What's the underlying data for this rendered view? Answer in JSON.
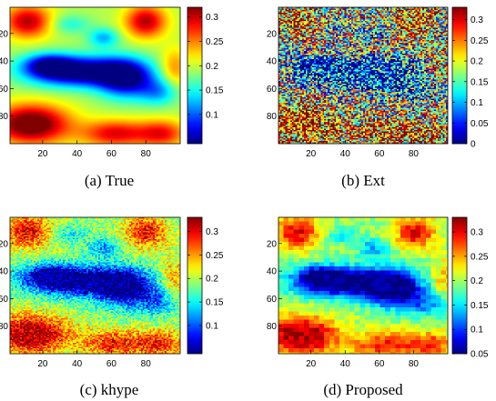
{
  "chart_data": [
    {
      "type": "heatmap",
      "caption": "(a) True",
      "variant": "true",
      "x_ticks": [
        "20",
        "40",
        "60",
        "80"
      ],
      "y_ticks": [
        "20",
        "40",
        "60",
        "80"
      ],
      "xlim": [
        1,
        100
      ],
      "ylim": [
        1,
        100
      ],
      "colorbar_range": [
        0.04,
        0.32
      ],
      "colorbar_ticks": [
        "0.3",
        "0.25",
        "0.2",
        "0.15",
        "0.1"
      ],
      "colormap": "jet"
    },
    {
      "type": "heatmap",
      "caption": "(b) Ext",
      "variant": "ext",
      "x_ticks": [
        "20",
        "40",
        "60",
        "80"
      ],
      "y_ticks": [
        "20",
        "40",
        "60",
        "80"
      ],
      "xlim": [
        1,
        100
      ],
      "ylim": [
        1,
        100
      ],
      "colorbar_range": [
        0,
        0.33
      ],
      "colorbar_ticks": [
        "0.3",
        "0.25",
        "0.2",
        "0.15",
        "0.1",
        "0.05",
        "0"
      ],
      "colormap": "jet"
    },
    {
      "type": "heatmap",
      "caption": "(c) khype",
      "variant": "khype",
      "x_ticks": [
        "20",
        "40",
        "60",
        "80"
      ],
      "y_ticks": [
        "20",
        "40",
        "60",
        "80"
      ],
      "xlim": [
        1,
        100
      ],
      "ylim": [
        1,
        100
      ],
      "colorbar_range": [
        0.04,
        0.33
      ],
      "colorbar_ticks": [
        "0.3",
        "0.25",
        "0.2",
        "0.15",
        "0.1"
      ],
      "colormap": "jet"
    },
    {
      "type": "heatmap",
      "caption": "(d) Proposed",
      "variant": "proposed",
      "x_ticks": [
        "20",
        "40",
        "60",
        "80"
      ],
      "y_ticks": [
        "20",
        "40",
        "60",
        "80"
      ],
      "xlim": [
        1,
        100
      ],
      "ylim": [
        1,
        100
      ],
      "colorbar_range": [
        0.05,
        0.33
      ],
      "colorbar_ticks": [
        "0.3",
        "0.25",
        "0.2",
        "0.15",
        "0.1",
        "0.05"
      ],
      "colormap": "jet"
    }
  ]
}
